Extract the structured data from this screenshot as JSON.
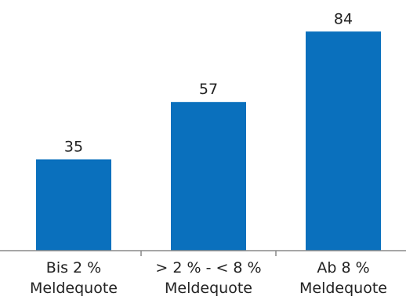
{
  "chart_data": {
    "type": "bar",
    "categories": [
      [
        "Bis 2 %",
        "Meldequote"
      ],
      [
        "> 2 % - < 8  %",
        "Meldequote"
      ],
      [
        "Ab 8 %",
        "Meldequote"
      ]
    ],
    "values": [
      35,
      57,
      84
    ],
    "title": "",
    "xlabel": "",
    "ylabel": "",
    "ylim": [
      0,
      100
    ],
    "grid": false,
    "legend": "none",
    "bar_color": "#0a70bd",
    "axis_color": "#888888"
  }
}
